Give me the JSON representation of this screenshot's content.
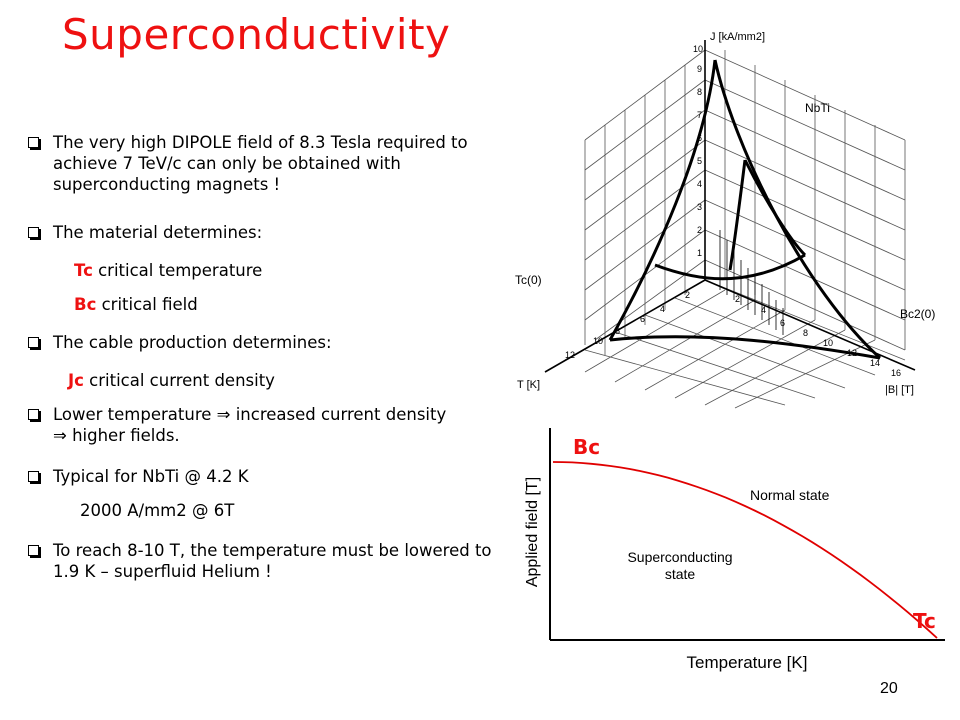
{
  "slide": {
    "title": "Superconductivity",
    "page_number": "20"
  },
  "bullets": [
    {
      "text": "The very high DIPOLE field of 8.3 Tesla required to achieve 7 TeV/c can only be obtained with superconducting magnets !"
    },
    {
      "text": "The material determines:"
    },
    {
      "text": "The cable production determines:"
    },
    {
      "text": "Lower temperature ⇒ increased current density ⇒ higher fields."
    },
    {
      "text": "Typical for NbTi @ 4.2 K"
    },
    {
      "text": "To reach 8-10 T, the temperature must be lowered to 1.9 K – superfluid Helium !"
    }
  ],
  "sub_items": {
    "tc_abbr": "Tc",
    "tc_desc": "critical temperature",
    "bc_abbr": "Bc",
    "bc_desc": "critical field",
    "jc_abbr": "Jc",
    "jc_desc": "critical current density",
    "nbti_value": "2000 A/mm2 @ 6T"
  },
  "figure_3d": {
    "material": "NbTi",
    "j_axis_label": "J [kA/mm2]",
    "t_axis_label": "T [K]",
    "b_axis_label": "|B| [T]",
    "tc0_label": "Tc(0)",
    "bc20_label": "Bc2(0)",
    "j_ticks": [
      "1",
      "2",
      "3",
      "4",
      "5",
      "6",
      "7",
      "8",
      "9",
      "10"
    ],
    "t_ticks": [
      "2",
      "4",
      "6",
      "8",
      "10",
      "12"
    ],
    "b_ticks": [
      "2",
      "4",
      "6",
      "8",
      "10",
      "12",
      "14",
      "16"
    ]
  },
  "chart_data": {
    "type": "line",
    "xlabel": "Temperature [K]",
    "ylabel": "Applied field [T]",
    "y_label_top": "Bc",
    "x_label_end": "Tc",
    "regions": [
      "Normal state",
      "Superconducting state"
    ],
    "series": [
      {
        "x": [
          0,
          0.2,
          0.4,
          0.6,
          0.8,
          1.0
        ],
        "y": [
          1.0,
          0.96,
          0.84,
          0.64,
          0.36,
          0.0
        ]
      }
    ],
    "xlim": [
      0,
      1
    ],
    "ylim": [
      0,
      1.05
    ],
    "colors": {
      "curve": "#e00000",
      "labels": "#ee1111"
    }
  }
}
